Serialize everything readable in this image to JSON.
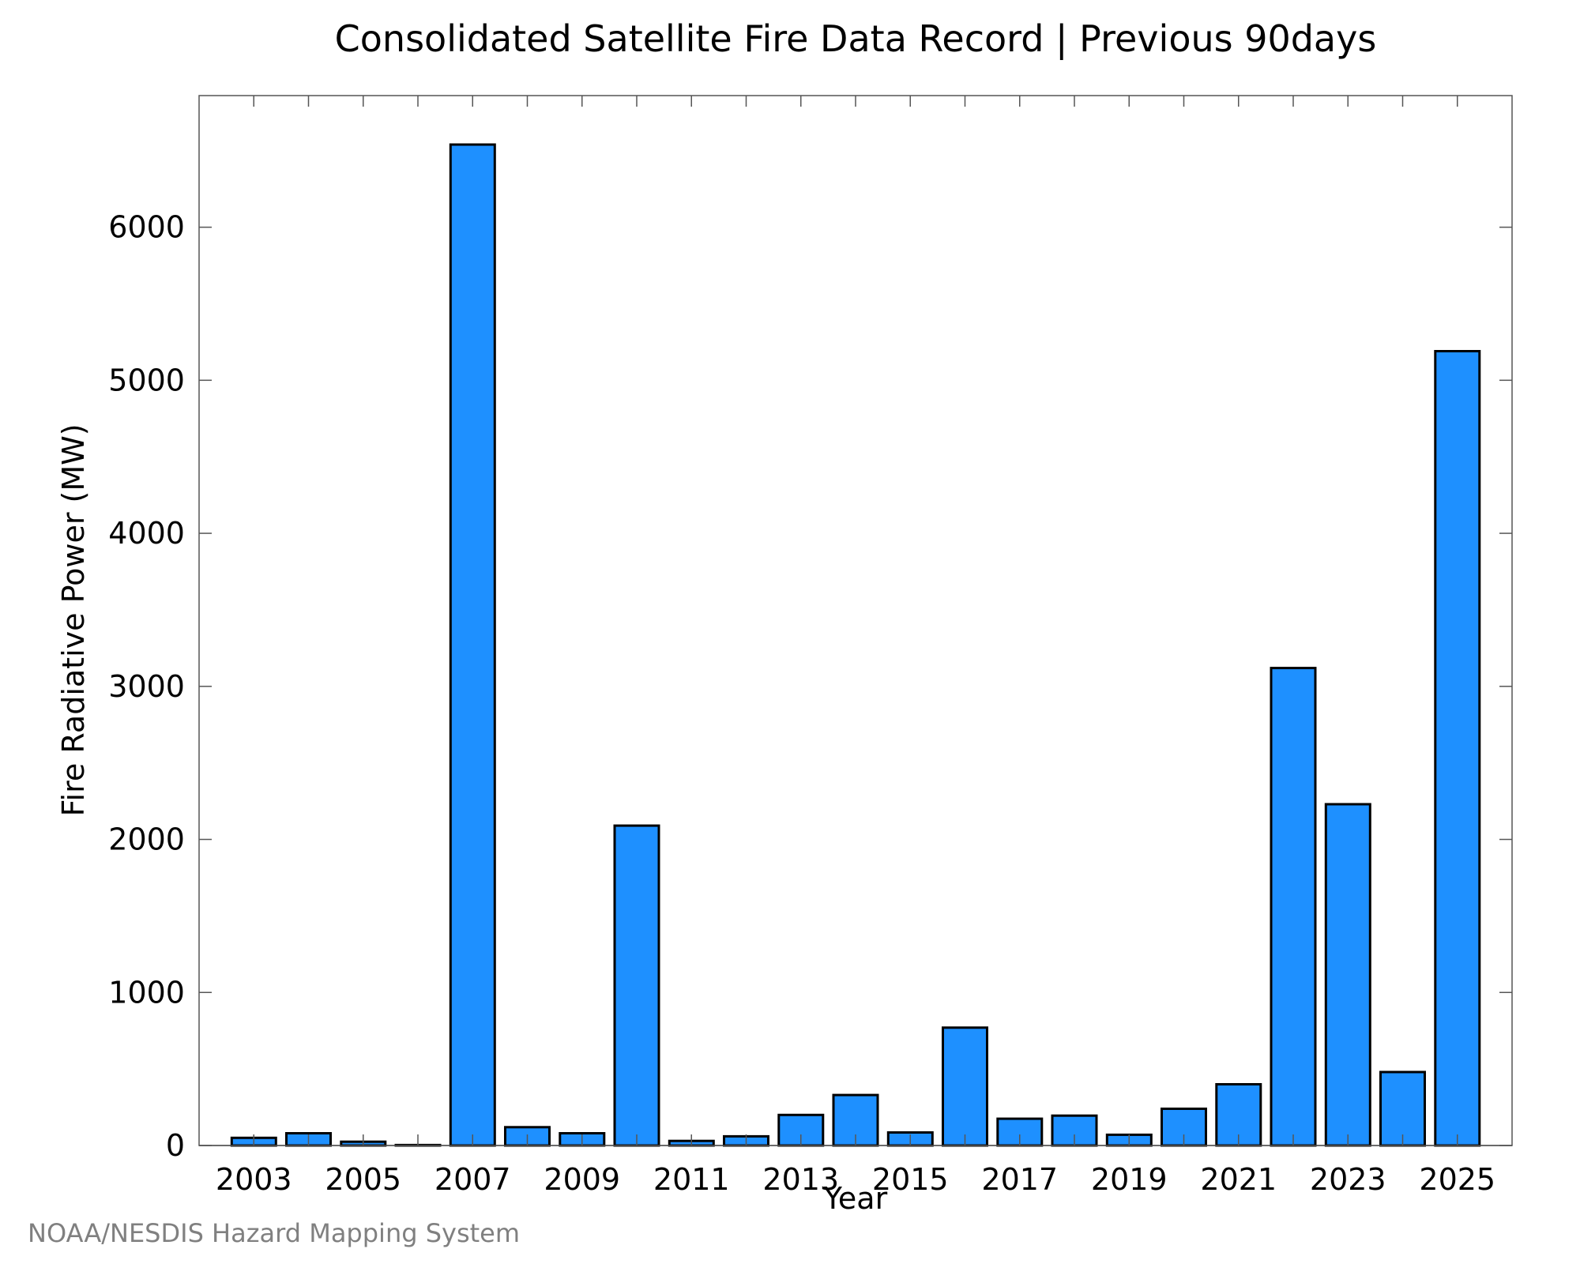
{
  "chart_data": {
    "type": "bar",
    "title": "Consolidated Satellite Fire Data Record | Previous 90days",
    "xlabel": "Year",
    "ylabel": "Fire Radiative Power (MW)",
    "x": [
      2003,
      2004,
      2005,
      2006,
      2007,
      2008,
      2009,
      2010,
      2011,
      2012,
      2013,
      2014,
      2015,
      2016,
      2017,
      2018,
      2019,
      2020,
      2021,
      2022,
      2023,
      2024,
      2025
    ],
    "values": [
      50,
      80,
      25,
      3,
      6540,
      120,
      80,
      2090,
      30,
      60,
      200,
      330,
      85,
      770,
      175,
      195,
      70,
      240,
      400,
      3120,
      2230,
      480,
      5190
    ],
    "xlim": [
      2002,
      2026
    ],
    "ylim": [
      0,
      6860
    ],
    "xticks": [
      2003,
      2005,
      2007,
      2009,
      2011,
      2013,
      2015,
      2017,
      2019,
      2021,
      2023,
      2025
    ],
    "yticks": [
      0,
      1000,
      2000,
      3000,
      4000,
      5000,
      6000
    ],
    "bar_color": "#1e90ff",
    "grid": false,
    "legend": "none"
  },
  "footer": {
    "credit": "NOAA/NESDIS Hazard Mapping System"
  }
}
